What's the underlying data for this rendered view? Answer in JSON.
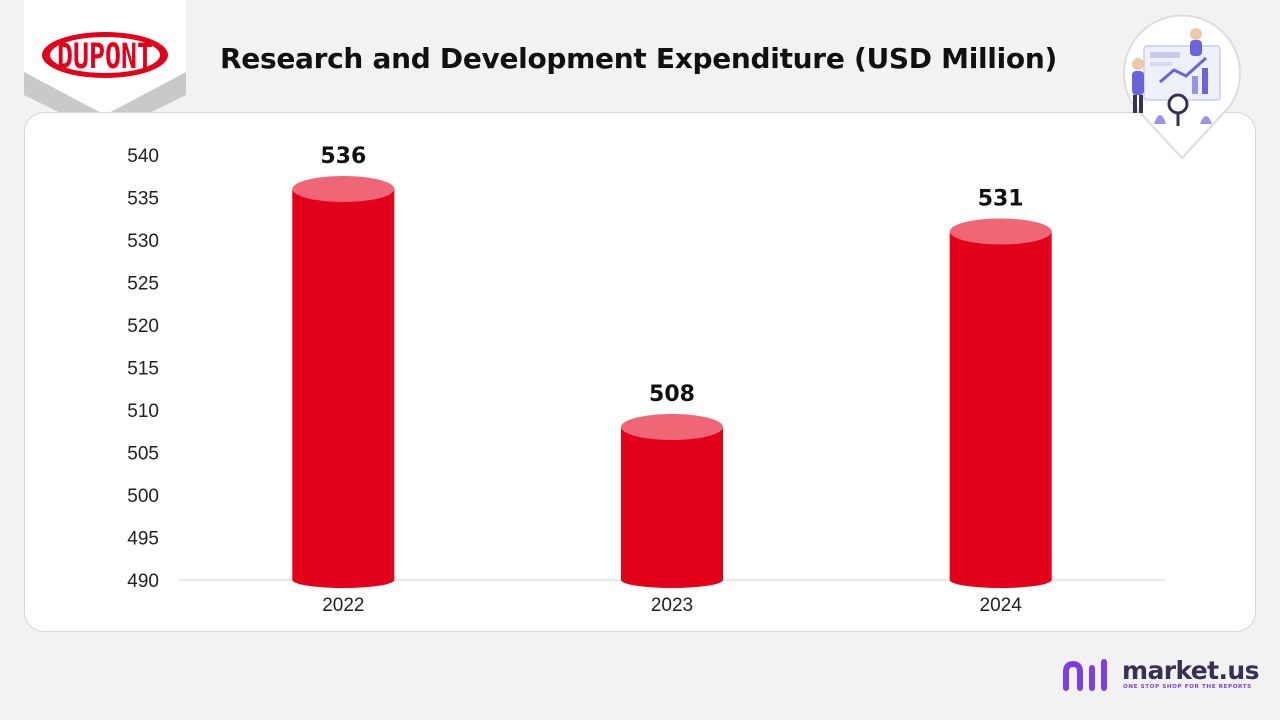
{
  "header": {
    "title": "Research and Development Expenditure (USD Million)"
  },
  "logo": {
    "text": "DUPONT",
    "color": "#e3001b"
  },
  "brand": {
    "name": "market.us",
    "tagline": "ONE STOP SHOP FOR THE REPORTS",
    "colors": [
      "#7b3fe4",
      "#3a2f56"
    ]
  },
  "illustration": {
    "icon": "data-analyst-illustration-icon"
  },
  "chart_data": {
    "type": "bar",
    "style": "cylinder",
    "categories": [
      "2022",
      "2023",
      "2024"
    ],
    "values": [
      536,
      508,
      531
    ],
    "data_labels": [
      "536",
      "508",
      "531"
    ],
    "ylim": [
      490,
      540
    ],
    "yticks": [
      540,
      535,
      530,
      525,
      520,
      515,
      510,
      505,
      500,
      495,
      490
    ],
    "grid": false,
    "legend": "none",
    "bar_color": "#e2001a",
    "bar_top_color": "#ef6676"
  }
}
